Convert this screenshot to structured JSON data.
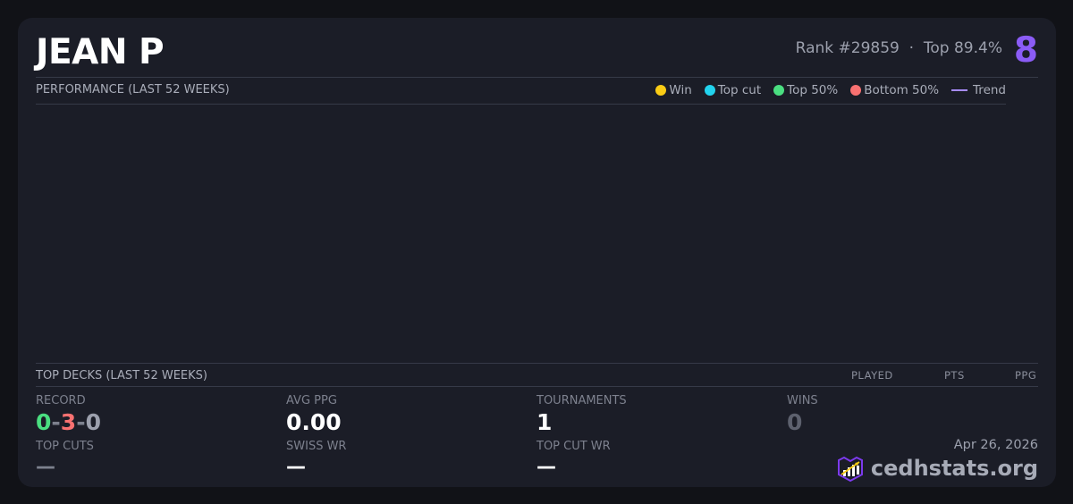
{
  "player": {
    "name": "JEAN P",
    "rank": "Rank #29859",
    "separator": "·",
    "top_pct": "Top 89.4%",
    "badge": "8"
  },
  "performance": {
    "title": "PERFORMANCE (LAST 52 WEEKS)",
    "legend": [
      {
        "label": "Win",
        "color": "#facc15"
      },
      {
        "label": "Top cut",
        "color": "#22d3ee"
      },
      {
        "label": "Top 50%",
        "color": "#4ade80"
      },
      {
        "label": "Bottom 50%",
        "color": "#f87171"
      },
      {
        "label": "Trend",
        "color": "#a78bfa"
      }
    ]
  },
  "top_decks": {
    "title": "TOP DECKS (LAST 52 WEEKS)",
    "columns": [
      "PLAYED",
      "PTS",
      "PPG"
    ]
  },
  "stats": {
    "record_label": "RECORD",
    "record_w": "0",
    "record_l": "3",
    "record_d": "0",
    "record_sep": "-",
    "avg_ppg_label": "AVG PPG",
    "avg_ppg": "0.00",
    "tournaments_label": "TOURNAMENTS",
    "tournaments": "1",
    "wins_label": "WINS",
    "wins": "0",
    "top_cuts_label": "TOP CUTS",
    "top_cuts": "—",
    "swiss_wr_label": "SWISS WR",
    "swiss_wr": "—",
    "top_cut_wr_label": "TOP CUT WR",
    "top_cut_wr": "—"
  },
  "footer": {
    "date": "Apr 26, 2026",
    "brand": "cedhstats.org"
  }
}
